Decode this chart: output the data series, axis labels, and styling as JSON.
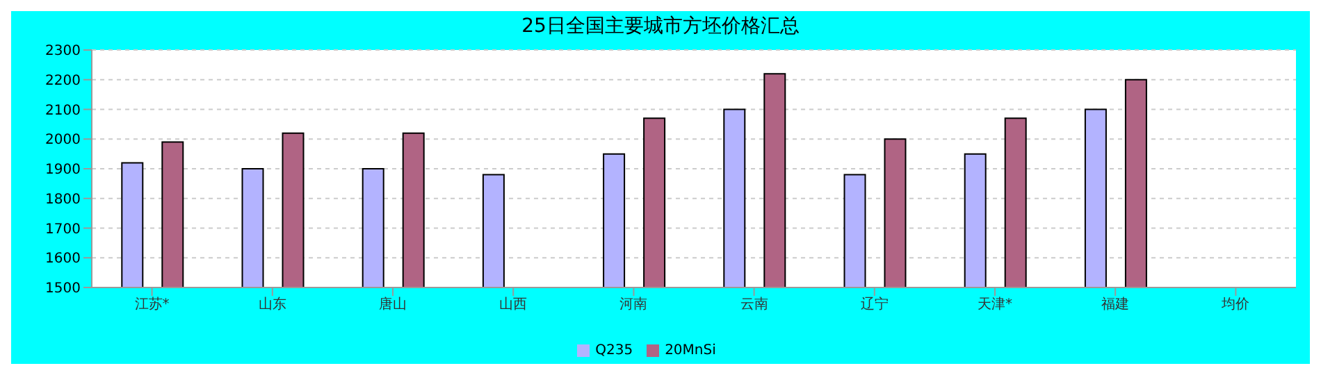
{
  "chart_data": {
    "type": "bar",
    "title": "25日全国主要城市方坯价格汇总",
    "categories": [
      "江苏*",
      "山东",
      "唐山",
      "山西",
      "河南",
      "云南",
      "辽宁",
      "天津*",
      "福建",
      "均价"
    ],
    "series": [
      {
        "name": "Q235",
        "color": "#b3b3ff",
        "values": [
          1920,
          1900,
          1900,
          1880,
          1950,
          2100,
          1880,
          1950,
          2100,
          null
        ]
      },
      {
        "name": "20MnSi",
        "color": "#b06484",
        "values": [
          1990,
          2020,
          2020,
          null,
          2070,
          2220,
          2000,
          2070,
          2200,
          null
        ]
      }
    ],
    "ylim": [
      1500,
      2300
    ],
    "yticks": [
      1500,
      1600,
      1700,
      1800,
      1900,
      2000,
      2100,
      2200,
      2300
    ],
    "grid": "y",
    "legend": "bottom"
  }
}
